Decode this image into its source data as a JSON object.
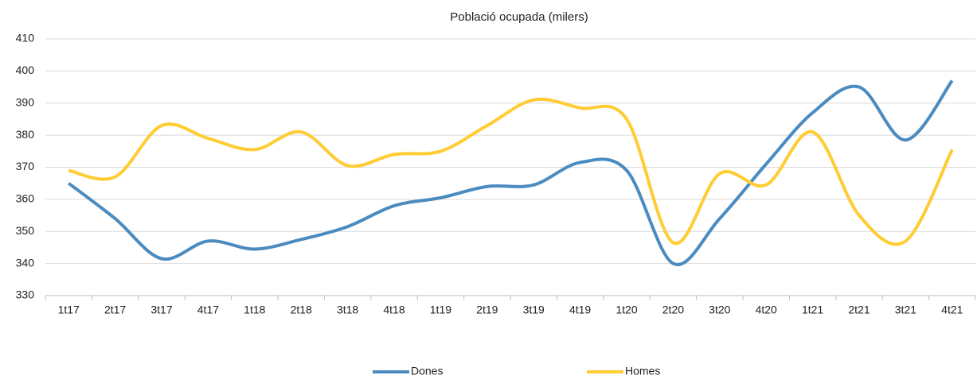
{
  "chart_data": {
    "type": "line",
    "title": "Població ocupada (milers)",
    "categories": [
      "1t17",
      "2t17",
      "3t17",
      "4t17",
      "1t18",
      "2t18",
      "3t18",
      "4t18",
      "1t19",
      "2t19",
      "3t19",
      "4t19",
      "1t20",
      "2t20",
      "3t20",
      "4t20",
      "1t21",
      "2t21",
      "3t21",
      "4t21"
    ],
    "series": [
      {
        "name": "Dones",
        "color": "#4a8bc0",
        "values": [
          365,
          354,
          341.5,
          347,
          344.5,
          347.5,
          351.5,
          358,
          360.5,
          364,
          364.5,
          371.5,
          369,
          340,
          354,
          371,
          387,
          395,
          378.5,
          397
        ]
      },
      {
        "name": "Homes",
        "color": "#ffcc33",
        "values": [
          369,
          367,
          383,
          379,
          375.5,
          381,
          370.5,
          374,
          375,
          383,
          391,
          388.5,
          385,
          346.5,
          368,
          364.5,
          381,
          355,
          347,
          375.5
        ]
      }
    ],
    "ylim": [
      330,
      410
    ],
    "yticks": [
      330,
      340,
      350,
      360,
      370,
      380,
      390,
      400,
      410
    ],
    "grid": true,
    "legend": "bottom"
  }
}
